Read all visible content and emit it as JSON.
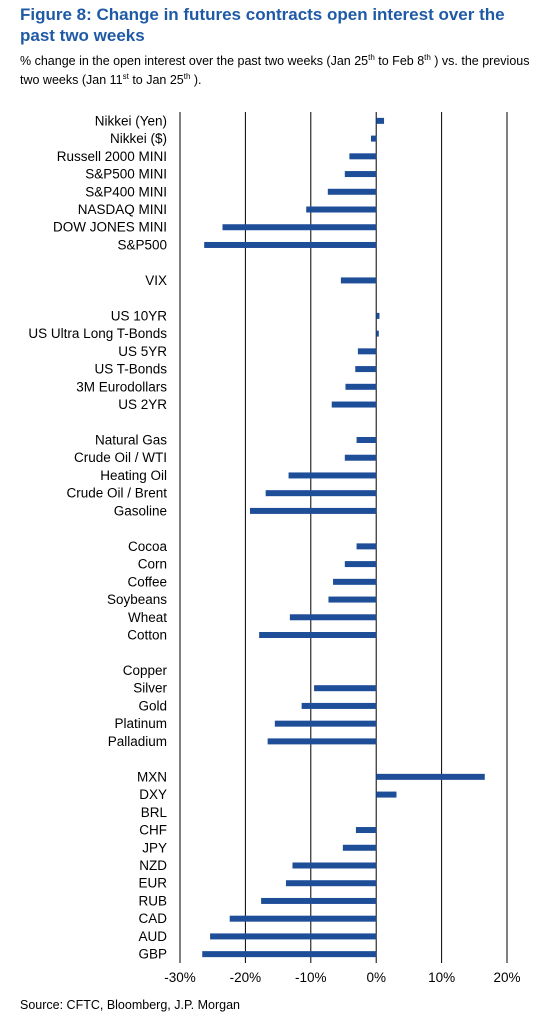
{
  "title": "Figure 8: Change in futures contracts open interest over the past two weeks",
  "subtitle": {
    "text1": "% change in the open interest over the past two weeks  (Jan 25",
    "sup1": "th",
    "text2": " to Feb 8",
    "sup2": "th",
    "text3": " ) vs. the previous two weeks (Jan 11",
    "sup3": "st",
    "text4": " to Jan 25",
    "sup4": "th",
    "text5": " )."
  },
  "source": "Source: CFTC, Bloomberg, J.P. Morgan",
  "colors": {
    "bar": "#1f4e99",
    "grid": "#000000",
    "title": "#1f5aa6"
  },
  "chart_data": {
    "type": "bar",
    "orientation": "horizontal",
    "xlim": [
      -30,
      20
    ],
    "xticks": [
      "-30%",
      "-20%",
      "-10%",
      "0%",
      "10%",
      "20%"
    ],
    "xtick_values": [
      -30,
      -20,
      -10,
      0,
      10,
      20
    ],
    "grid": "vertical",
    "categories": [
      "Nikkei (Yen)",
      "Nikkei ($)",
      "Russell 2000 MINI",
      "S&P500 MINI",
      "S&P400 MINI",
      "NASDAQ MINI",
      "DOW JONES MINI",
      "S&P500",
      "",
      "VIX",
      "",
      "US 10YR",
      "US Ultra Long T-Bonds",
      "US 5YR",
      "US T-Bonds",
      "3M Eurodollars",
      "US 2YR",
      "",
      "Natural Gas",
      "Crude Oil / WTI",
      "Heating Oil",
      "Crude Oil / Brent",
      "Gasoline",
      "",
      "Cocoa",
      "Corn",
      "Coffee",
      "Soybeans",
      "Wheat",
      "Cotton",
      "",
      "Copper",
      "Silver",
      "Gold",
      "Platinum",
      "Palladium",
      "",
      "MXN",
      "DXY",
      "BRL",
      "CHF",
      "JPY",
      "NZD",
      "EUR",
      "RUB",
      "CAD",
      "AUD",
      "GBP"
    ],
    "values": [
      1.2,
      -0.8,
      -4.1,
      -4.8,
      -7.4,
      -10.7,
      -23.5,
      -26.3,
      null,
      -5.4,
      null,
      0.5,
      0.4,
      -2.8,
      -3.2,
      -4.7,
      -6.8,
      null,
      -3.0,
      -4.8,
      -13.4,
      -16.9,
      -19.3,
      null,
      -3.0,
      -4.8,
      -6.6,
      -7.3,
      -13.2,
      -17.9,
      null,
      0,
      -9.5,
      -11.4,
      -15.5,
      -16.6,
      null,
      16.6,
      3.1,
      0,
      -3.1,
      -5.1,
      -12.8,
      -13.8,
      -17.6,
      -22.4,
      -25.4,
      -26.6
    ]
  }
}
